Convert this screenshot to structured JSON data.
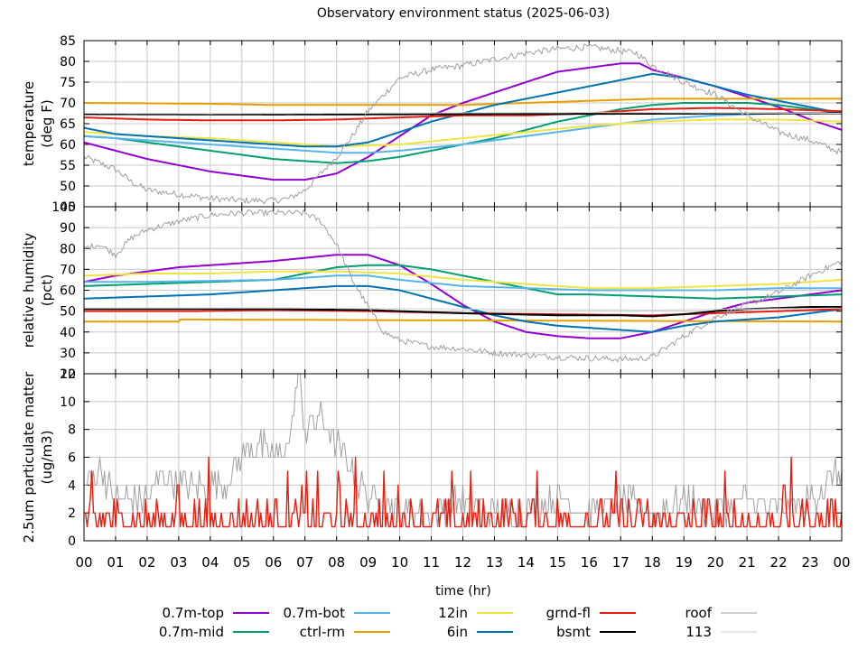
{
  "title": "Observatory environment status (2025-06-03)",
  "colors": {
    "purple": "#9400d3",
    "teal": "#009e73",
    "skyblue": "#56b4e9",
    "orange": "#e69f00",
    "yellow": "#f0e442",
    "blue": "#0072b2",
    "red": "#e51e10",
    "black": "#000000",
    "gray": "#a0a0a0",
    "lightgray": "#d0d0d0",
    "grid": "#c8c8c8"
  },
  "chart_data": [
    {
      "type": "line",
      "ylabel": [
        "temperature",
        "(deg F)"
      ],
      "ylim": [
        45,
        85
      ],
      "yticks": [
        45,
        50,
        55,
        60,
        65,
        70,
        75,
        80,
        85
      ],
      "ytick_labels": [
        "45",
        "50",
        "55",
        "60",
        "65",
        "70",
        "75",
        "80",
        "85"
      ],
      "series": [
        {
          "key": "p07top",
          "color": "purple",
          "x": [
            0,
            1,
            2,
            3,
            4,
            5,
            6,
            7,
            8,
            9,
            10,
            11,
            12,
            13,
            14,
            15,
            16,
            17,
            17.6,
            18,
            19,
            20,
            21,
            22,
            23,
            24
          ],
          "y": [
            60.5,
            58.5,
            56.5,
            55,
            53.5,
            52.5,
            51.5,
            51.5,
            53,
            57,
            62,
            67,
            70,
            72.5,
            75,
            77.5,
            78.5,
            79.5,
            79.5,
            78,
            76,
            74,
            71.5,
            69,
            66,
            63.5
          ]
        },
        {
          "key": "p07mid",
          "color": "teal",
          "x": [
            0,
            1,
            2,
            3,
            4,
            5,
            6,
            7,
            8,
            9,
            10,
            11,
            12,
            13,
            14,
            15,
            16,
            17,
            18,
            19,
            20,
            21,
            22,
            23,
            24
          ],
          "y": [
            62,
            61.5,
            60.5,
            59.5,
            58.5,
            57.5,
            56.5,
            56,
            55.5,
            56,
            57,
            58.5,
            60,
            61.5,
            63.5,
            65.5,
            67,
            68.5,
            69.5,
            70,
            70,
            70,
            69.5,
            68.5,
            67.5
          ]
        },
        {
          "key": "p07bot",
          "color": "skyblue",
          "x": [
            0,
            2,
            4,
            6,
            8,
            9,
            10,
            12,
            14,
            16,
            18,
            20,
            22,
            24
          ],
          "y": [
            62,
            61,
            60,
            59,
            58,
            58,
            58.5,
            60,
            62,
            64,
            66,
            67,
            67.5,
            67.5
          ]
        },
        {
          "key": "ctrlrm",
          "color": "orange",
          "x": [
            0,
            4,
            6,
            8,
            10,
            12,
            14,
            16,
            18,
            20,
            24
          ],
          "y": [
            70,
            69.8,
            69.5,
            69.5,
            69.5,
            69.5,
            70,
            70.5,
            71,
            71,
            71
          ]
        },
        {
          "key": "in12",
          "color": "yellow",
          "x": [
            0,
            2,
            4,
            6,
            8,
            10,
            12,
            14,
            16,
            18,
            20,
            22,
            24
          ],
          "y": [
            63,
            62,
            61.5,
            60.5,
            59.5,
            60,
            61.5,
            63,
            64.5,
            65.5,
            66,
            66,
            65.5
          ]
        },
        {
          "key": "in6",
          "color": "blue",
          "x": [
            0,
            1,
            2,
            3,
            4,
            5,
            6,
            7,
            8,
            9,
            10,
            11,
            12,
            13,
            14,
            15,
            16,
            17,
            18,
            19,
            20,
            21,
            22,
            23,
            24
          ],
          "y": [
            64,
            62.5,
            62,
            61.5,
            61,
            60.5,
            60,
            59.5,
            59.5,
            60.5,
            63,
            65.5,
            67.5,
            69.5,
            71,
            72.5,
            74,
            75.5,
            77,
            76,
            74,
            72,
            70.5,
            69,
            67.5
          ]
        },
        {
          "key": "grndfl",
          "color": "red",
          "x": [
            0,
            2,
            4,
            6,
            8,
            10,
            12,
            14,
            16,
            18,
            20,
            22,
            24
          ],
          "y": [
            66.5,
            66,
            65.8,
            65.8,
            66,
            66.5,
            67,
            67,
            67.5,
            68.5,
            68.8,
            68.5,
            68
          ]
        },
        {
          "key": "bsmt",
          "color": "black",
          "x": [
            0,
            6,
            12,
            18,
            24
          ],
          "y": [
            67.3,
            67.2,
            67.3,
            67.4,
            67.5
          ]
        },
        {
          "key": "roof",
          "color": "gray",
          "x": [
            0,
            0.5,
            1,
            1.5,
            2,
            3,
            4,
            5,
            6,
            6.5,
            7,
            7.5,
            8,
            8.5,
            9,
            9.5,
            10,
            11,
            12,
            13,
            14,
            15,
            16,
            17,
            17.5,
            18,
            18.5,
            19,
            20,
            21,
            22,
            23,
            24
          ],
          "y": [
            57,
            55.5,
            54,
            51,
            49,
            48,
            47,
            46.5,
            46.5,
            47,
            49,
            53,
            57,
            62,
            68,
            72,
            76,
            78,
            79,
            80.5,
            82,
            83,
            83.5,
            82.5,
            82,
            79,
            77,
            75,
            72,
            67,
            63,
            61,
            58
          ]
        },
        {
          "key": "s113",
          "color": "lightgray",
          "x": [
            0,
            4,
            8,
            12,
            16,
            20,
            24
          ],
          "y": [
            67.5,
            67.4,
            67.5,
            67.6,
            67.7,
            67.6,
            67.5
          ]
        }
      ]
    },
    {
      "type": "line",
      "ylabel": [
        "relative humidity",
        "(pct)"
      ],
      "ylim": [
        20,
        100
      ],
      "yticks": [
        20,
        30,
        40,
        50,
        60,
        70,
        80,
        90,
        100
      ],
      "ytick_labels": [
        "20",
        "30",
        "40",
        "50",
        "60",
        "70",
        "80",
        "90",
        "100"
      ],
      "series": [
        {
          "key": "p07top",
          "color": "purple",
          "x": [
            0,
            1,
            2,
            3,
            4,
            5,
            6,
            7,
            8,
            9,
            10,
            11,
            12,
            13,
            14,
            15,
            16,
            17,
            18,
            19,
            20,
            21,
            22,
            23,
            24
          ],
          "y": [
            64,
            67,
            69,
            71,
            72,
            73,
            74,
            75.5,
            77,
            77,
            72,
            63,
            53,
            45,
            40,
            38,
            37,
            37,
            40,
            45,
            50,
            54,
            56,
            58,
            60
          ]
        },
        {
          "key": "p07mid",
          "color": "teal",
          "x": [
            0,
            2,
            4,
            6,
            7,
            8,
            9,
            10,
            11,
            12,
            13,
            14,
            15,
            16,
            18,
            20,
            22,
            24
          ],
          "y": [
            62,
            63,
            64,
            65,
            68,
            71,
            72,
            72,
            70,
            67,
            64,
            61,
            58,
            58,
            57,
            56,
            57,
            58
          ]
        },
        {
          "key": "p07bot",
          "color": "skyblue",
          "x": [
            0,
            2,
            4,
            6,
            8,
            9,
            10,
            12,
            14,
            16,
            18,
            20,
            22,
            24
          ],
          "y": [
            64,
            64,
            64.5,
            65,
            67,
            67,
            65,
            62,
            61,
            60,
            60,
            60,
            61,
            61
          ]
        },
        {
          "key": "ctrlrm",
          "color": "orange",
          "x": [
            0,
            3,
            3.05,
            24
          ],
          "y": [
            45,
            45,
            46,
            45
          ]
        },
        {
          "key": "in12",
          "color": "yellow",
          "x": [
            0,
            2,
            4,
            6,
            8,
            10,
            12,
            14,
            16,
            18,
            20,
            22,
            24
          ],
          "y": [
            67,
            68,
            68,
            69,
            69,
            68,
            65,
            63,
            61,
            61,
            62,
            63,
            65
          ]
        },
        {
          "key": "in6",
          "color": "blue",
          "x": [
            0,
            2,
            4,
            6,
            8,
            9,
            10,
            11,
            12,
            13,
            14,
            15,
            16,
            17,
            18,
            19,
            20,
            21,
            22,
            23,
            24
          ],
          "y": [
            56,
            57,
            58,
            60,
            62,
            62,
            60,
            56,
            52,
            48,
            45,
            43,
            42,
            41,
            40,
            43,
            45,
            46,
            47,
            49,
            51
          ]
        },
        {
          "key": "grndfl",
          "color": "red",
          "x": [
            0,
            3.5,
            6,
            9,
            12,
            15,
            18,
            21,
            24
          ],
          "y": [
            50,
            50,
            50.5,
            50,
            49,
            48.5,
            48,
            49.5,
            51
          ]
        },
        {
          "key": "bsmt",
          "color": "black",
          "x": [
            0,
            3,
            6,
            9,
            12,
            15,
            17,
            18,
            19,
            20,
            21,
            22,
            23,
            24
          ],
          "y": [
            51,
            51,
            51,
            50.5,
            49,
            48,
            48,
            47.5,
            48.5,
            50,
            51,
            51.5,
            52,
            52
          ]
        },
        {
          "key": "roof",
          "color": "gray",
          "x": [
            0,
            0.5,
            1,
            1.5,
            2,
            3,
            4,
            5,
            6,
            6.5,
            7,
            7.5,
            8,
            8.5,
            9,
            9.5,
            10,
            11,
            12,
            13,
            14,
            15,
            16,
            17,
            17.5,
            18,
            18.5,
            19,
            20,
            21,
            22,
            23,
            24
          ],
          "y": [
            80,
            82,
            77,
            85,
            89,
            93,
            96,
            97,
            97,
            97,
            97,
            93,
            82,
            65,
            52,
            40,
            36,
            33,
            32,
            30,
            29,
            28,
            27.5,
            27,
            27,
            28,
            33,
            38,
            47,
            53,
            59,
            67,
            74
          ]
        },
        {
          "key": "s113",
          "color": "lightgray",
          "x": [
            0,
            6,
            12,
            18,
            24
          ],
          "y": [
            51.5,
            51.5,
            51,
            50.5,
            51.5
          ]
        }
      ]
    },
    {
      "type": "line",
      "ylabel": [
        "2.5um particulate matter",
        "(ug/m3)"
      ],
      "ylim": [
        0,
        12
      ],
      "yticks": [
        0,
        2,
        4,
        6,
        8,
        10,
        12
      ],
      "ytick_labels": [
        "0",
        "2",
        "4",
        "6",
        "8",
        "10",
        "12"
      ],
      "series": [
        {
          "key": "roof",
          "color": "gray",
          "x": [
            0,
            0.5,
            1,
            1.5,
            2,
            2.5,
            3,
            3.5,
            4,
            4.5,
            5,
            5.5,
            6,
            6.5,
            6.8,
            7,
            7.5,
            8,
            8.5,
            9,
            9.5,
            10,
            11,
            12,
            13,
            14,
            15,
            16,
            17,
            18,
            19,
            20,
            21,
            22,
            23,
            24
          ],
          "y": [
            4,
            5,
            3,
            3,
            3,
            5,
            4,
            4,
            4,
            4,
            6,
            7,
            6,
            7,
            12,
            8,
            9,
            7,
            5,
            3,
            3,
            2,
            2,
            3,
            2,
            2,
            3,
            2,
            3,
            2,
            3,
            2,
            3,
            2,
            3,
            5
          ]
        },
        {
          "key": "pmred",
          "color": "red",
          "x": [
            0,
            0.5,
            1,
            1.5,
            2,
            2.5,
            3,
            3.5,
            4,
            4.5,
            5,
            5.5,
            6,
            6.5,
            7,
            7.5,
            8,
            8.5,
            9,
            9.5,
            10,
            10.5,
            11,
            11.5,
            12,
            12.5,
            13,
            13.5,
            14,
            14.5,
            15,
            15.5,
            16,
            16.5,
            17,
            17.5,
            18,
            18.5,
            19,
            19.5,
            20,
            20.5,
            21,
            21.5,
            22,
            22.5,
            23,
            23.5,
            24
          ],
          "y": [
            1,
            2,
            1.5,
            2,
            1.5,
            1,
            2,
            1.5,
            1.5,
            2,
            2,
            1.5,
            2,
            2,
            2,
            1.5,
            2,
            1.5,
            1.5,
            2,
            2,
            1.5,
            2,
            1.5,
            2,
            1.5,
            1.5,
            1.5,
            2,
            1.5,
            2,
            1.5,
            2,
            1.5,
            2,
            1.5,
            2,
            1.5,
            1.5,
            2,
            1.5,
            1.5,
            2,
            1.5,
            2,
            1.5,
            1.5,
            1.5,
            1.5
          ]
        }
      ]
    }
  ],
  "xaxis": {
    "label": "time (hr)",
    "ticks": [
      0,
      1,
      2,
      3,
      4,
      5,
      6,
      7,
      8,
      9,
      10,
      11,
      12,
      13,
      14,
      15,
      16,
      17,
      18,
      19,
      20,
      21,
      22,
      23,
      24
    ],
    "tick_labels": [
      "00",
      "01",
      "02",
      "03",
      "04",
      "05",
      "06",
      "07",
      "08",
      "09",
      "10",
      "11",
      "12",
      "13",
      "14",
      "15",
      "16",
      "17",
      "18",
      "19",
      "20",
      "21",
      "22",
      "23",
      "00"
    ],
    "xlim": [
      0,
      24
    ]
  },
  "legend": {
    "placement": "bottom",
    "entries": [
      {
        "key": "p07top",
        "label": "0.7m-top",
        "color": "purple"
      },
      {
        "key": "p07mid",
        "label": "0.7m-mid",
        "color": "teal"
      },
      {
        "key": "p07bot",
        "label": "0.7m-bot",
        "color": "skyblue"
      },
      {
        "key": "ctrlrm",
        "label": "ctrl-rm",
        "color": "orange"
      },
      {
        "key": "in12",
        "label": "12in",
        "color": "yellow"
      },
      {
        "key": "in6",
        "label": "6in",
        "color": "blue"
      },
      {
        "key": "grndfl",
        "label": "grnd-fl",
        "color": "red"
      },
      {
        "key": "bsmt",
        "label": "bsmt",
        "color": "black"
      },
      {
        "key": "roof",
        "label": "roof",
        "color": "gray"
      },
      {
        "key": "s113",
        "label": "113",
        "color": "lightgray"
      }
    ]
  }
}
